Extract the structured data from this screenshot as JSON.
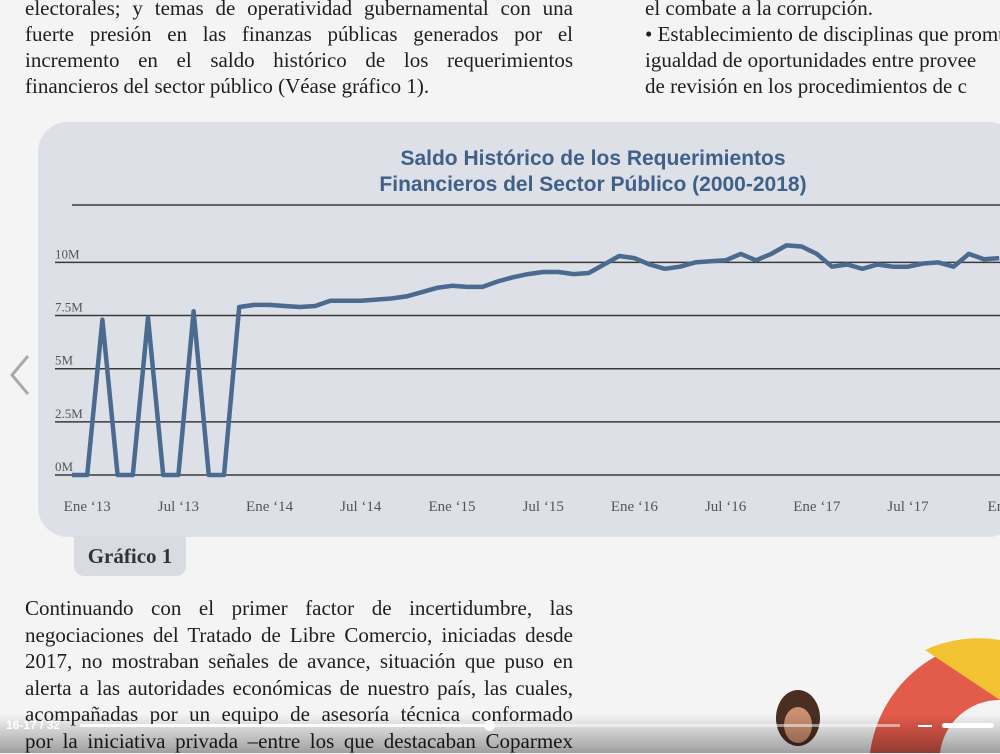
{
  "top_left_lines": [
    "electorales; y temas de operatividad gubernamental con una",
    "fuerte presión en las finanzas públicas generados por el",
    "incremento en el saldo histórico de los requerimientos",
    "financieros del sector público (Véase gráfico 1)."
  ],
  "top_right_lines": [
    "el combate a la corrupción.",
    "• Establecimiento de disciplinas que promu",
    "igualdad de oportunidades entre provee",
    "de revisión en los procedimientos de c"
  ],
  "chart_data": {
    "type": "line",
    "title": [
      "Saldo Histórico de los Requerimientos",
      "Financieros del Sector Público (2000-2018)"
    ],
    "categories": [
      null,
      "Ene ‘13",
      null,
      null,
      null,
      null,
      null,
      "Jul ‘13",
      null,
      null,
      null,
      null,
      null,
      "Ene ‘14",
      null,
      null,
      null,
      null,
      null,
      "Jul ‘14",
      null,
      null,
      null,
      null,
      null,
      "Ene ‘15",
      null,
      null,
      null,
      null,
      null,
      "Jul ‘15",
      null,
      null,
      null,
      null,
      null,
      "Ene ‘16",
      null,
      null,
      null,
      null,
      null,
      "Jul ‘16",
      null,
      null,
      null,
      null,
      null,
      "Ene ‘17",
      null,
      null,
      null,
      null,
      null,
      "Jul ‘17",
      null,
      null,
      null,
      null,
      null,
      "Ene"
    ],
    "series": [
      {
        "color": "#4a6a8f",
        "values": [
          0,
          0,
          7.3,
          0,
          0,
          7.4,
          0,
          0,
          7.7,
          0,
          0,
          7.9,
          8.0,
          8.0,
          7.95,
          7.9,
          7.95,
          8.2,
          8.2,
          8.2,
          8.25,
          8.3,
          8.4,
          8.6,
          8.8,
          8.9,
          8.85,
          8.85,
          9.1,
          9.3,
          9.45,
          9.55,
          9.55,
          9.45,
          9.5,
          9.9,
          10.3,
          10.2,
          9.9,
          9.7,
          9.8,
          10.0,
          10.05,
          10.1,
          10.4,
          10.1,
          10.4,
          10.8,
          10.75,
          10.4,
          9.8,
          9.9,
          9.7,
          9.9,
          9.8,
          9.8,
          9.95,
          10.0,
          9.8,
          10.4,
          10.15,
          10.2
        ]
      }
    ],
    "ylim": [
      0,
      12.7
    ],
    "yticks": [
      {
        "value": 0,
        "label": "0M"
      },
      {
        "value": 2.5,
        "label": "2.5M"
      },
      {
        "value": 5,
        "label": "5M"
      },
      {
        "value": 7.5,
        "label": "7.5M"
      },
      {
        "value": 10,
        "label": "10M"
      }
    ],
    "grid": true
  },
  "figure_caption": "Gráfico 1",
  "body_lines": [
    "Continuando con el primer factor de incertidumbre, las",
    "negociaciones del Tratado de Libre Comercio, iniciadas desde",
    "2017, no mostraban señales de avance, situación que puso en",
    "alerta a las autoridades económicas de nuestro país, las cuales,",
    "acompañadas por un equipo de asesoría técnica conformado",
    "por la iniciativa privada –entre los que destacaban Coparmex"
  ],
  "viewer": {
    "page_indicator": "16-17 / 32"
  }
}
